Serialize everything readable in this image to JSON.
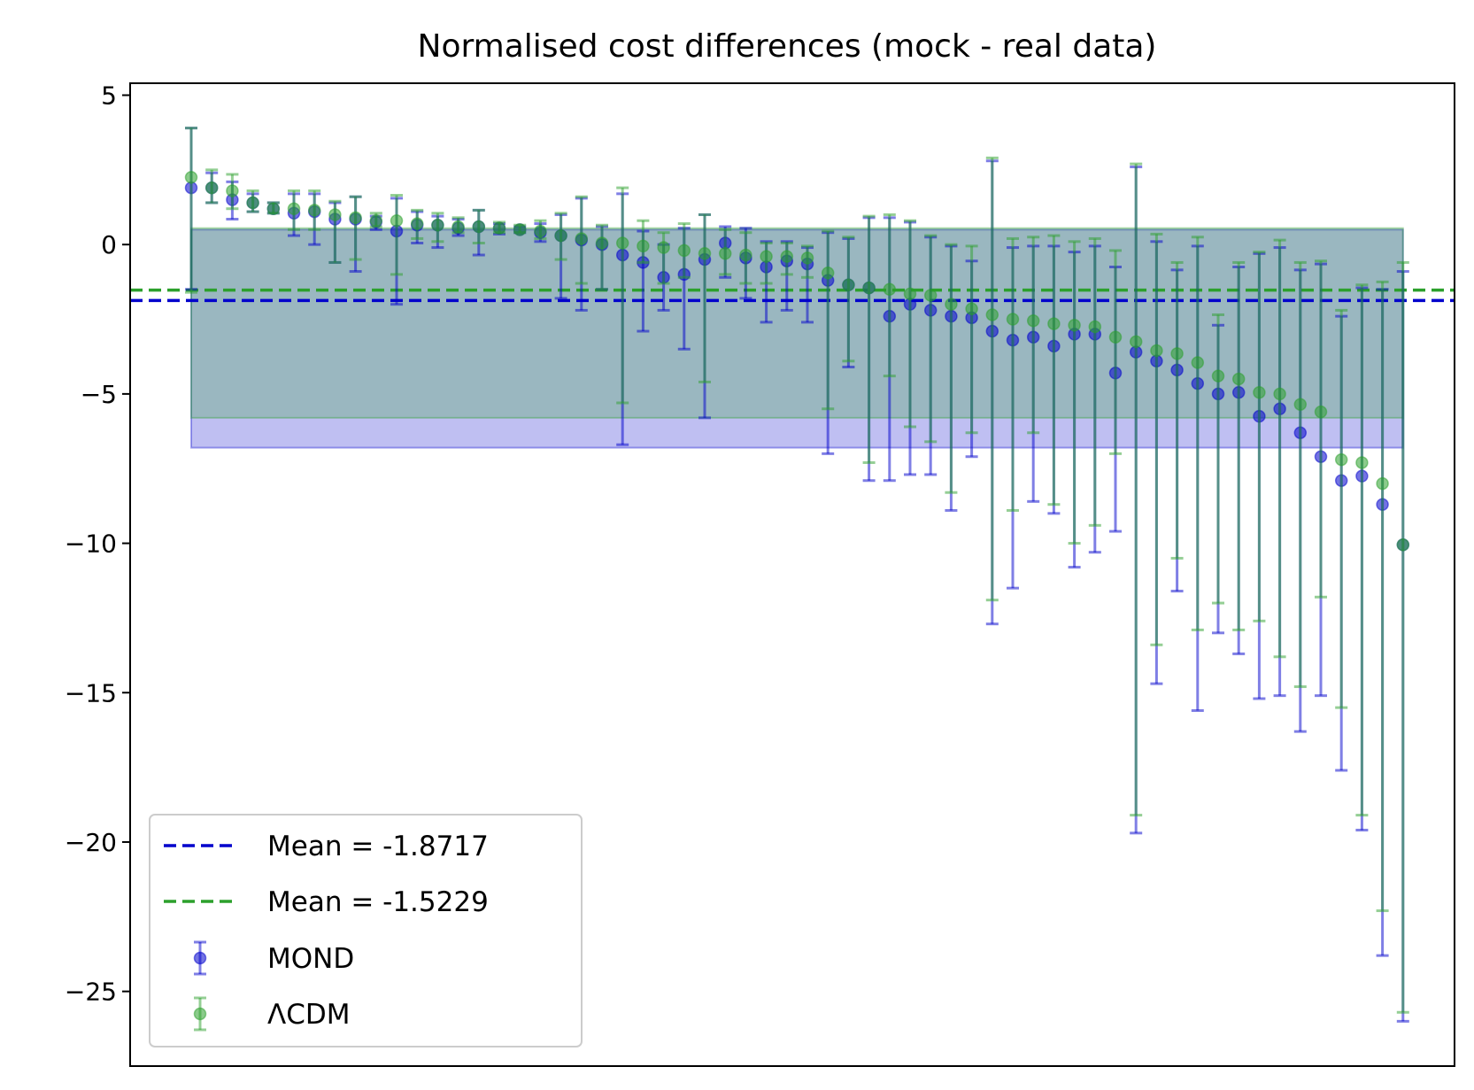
{
  "chart_data": {
    "type": "scatter",
    "title": "Normalised cost differences (mock - real data)",
    "xlabel": "",
    "ylabel": "",
    "ylim": [
      -27.5,
      5.4
    ],
    "yticks": [
      5,
      0,
      -5,
      -10,
      -15,
      -20,
      -25
    ],
    "yticklabels": [
      "5",
      "0",
      "−5",
      "−10",
      "−15",
      "−20",
      "−25"
    ],
    "xticks": [],
    "grid": false,
    "legend_position": "lower-left",
    "legend": [
      {
        "label": "Mean = -1.8717",
        "kind": "line",
        "color": "#0000cc"
      },
      {
        "label": "Mean = -1.5229",
        "kind": "line",
        "color": "#2ca02c"
      },
      {
        "label": "MOND",
        "kind": "errorbar",
        "color": "#0000cc"
      },
      {
        "label": "ΛCDM",
        "kind": "errorbar",
        "color": "#2ca02c"
      }
    ],
    "mean_lines": [
      {
        "name": "MOND mean",
        "value": -1.8717,
        "color": "#0000cc"
      },
      {
        "name": "ΛCDM mean",
        "value": -1.5229,
        "color": "#2ca02c"
      }
    ],
    "bands": [
      {
        "name": "MOND band",
        "y1": 0.5,
        "y2": -6.8,
        "color": "#0000cc"
      },
      {
        "name": "ΛCDM band",
        "y1": 0.55,
        "y2": -5.8,
        "color": "#2ca02c"
      }
    ],
    "series": [
      {
        "name": "MOND",
        "color": "#0000cc",
        "values": [
          1.9,
          1.9,
          1.5,
          1.4,
          1.2,
          1.05,
          1.1,
          0.85,
          0.85,
          0.75,
          0.45,
          0.65,
          0.65,
          0.55,
          0.6,
          0.55,
          0.5,
          0.4,
          0.3,
          0.15,
          0.0,
          -0.35,
          -0.6,
          -1.1,
          -1.0,
          -0.5,
          0.05,
          -0.45,
          -0.75,
          -0.55,
          -0.65,
          -1.2,
          -1.35,
          -1.45,
          -2.4,
          -2.0,
          -2.2,
          -2.4,
          -2.45,
          -2.9,
          -3.2,
          -3.1,
          -3.4,
          -3.0,
          -3.0,
          -4.3,
          -3.6,
          -3.9,
          -4.2,
          -4.65,
          -5.0,
          -4.95,
          -5.75,
          -5.5,
          -6.3,
          -7.1,
          -7.9,
          -7.75,
          -8.7,
          -10.05
        ],
        "err_low": [
          -1.5,
          1.4,
          0.85,
          1.1,
          1.05,
          0.3,
          0.0,
          -0.6,
          -0.9,
          0.5,
          -2.0,
          0.05,
          -0.1,
          0.3,
          -0.35,
          0.35,
          0.4,
          0.1,
          -1.8,
          -2.2,
          -1.5,
          -6.7,
          -2.9,
          -2.2,
          -3.5,
          -5.8,
          -1.1,
          -1.8,
          -2.6,
          -2.2,
          -2.6,
          -7.0,
          -4.1,
          -7.9,
          -7.9,
          -7.7,
          -7.7,
          -8.9,
          -7.1,
          -12.7,
          -11.5,
          -8.6,
          -9.0,
          -10.8,
          -10.3,
          -9.6,
          -19.7,
          -14.7,
          -11.6,
          -15.6,
          -13.0,
          -13.7,
          -15.2,
          -15.1,
          -16.3,
          -15.1,
          -17.6,
          -19.6,
          -23.8,
          -26.0
        ],
        "err_high": [
          3.9,
          2.4,
          2.1,
          1.7,
          1.4,
          1.7,
          1.7,
          1.4,
          1.6,
          0.95,
          1.55,
          1.1,
          0.95,
          0.85,
          1.15,
          0.7,
          0.6,
          0.7,
          1.0,
          1.55,
          0.6,
          1.7,
          0.45,
          0.0,
          0.55,
          1.0,
          0.6,
          0.55,
          0.1,
          0.1,
          -0.1,
          0.4,
          0.2,
          0.9,
          0.9,
          0.75,
          0.25,
          -0.05,
          -0.55,
          2.8,
          -0.1,
          -0.05,
          -0.05,
          -0.25,
          -0.05,
          -0.75,
          2.6,
          0.1,
          -0.85,
          -0.05,
          -2.7,
          -0.75,
          -0.3,
          -0.1,
          -0.85,
          -0.65,
          -2.4,
          -1.45,
          -1.5,
          -0.9
        ]
      },
      {
        "name": "ΛCDM",
        "color": "#2ca02c",
        "values": [
          2.25,
          1.9,
          1.8,
          1.4,
          1.2,
          1.2,
          1.15,
          1.0,
          0.9,
          0.8,
          0.8,
          0.7,
          0.65,
          0.6,
          0.6,
          0.55,
          0.5,
          0.45,
          0.3,
          0.2,
          0.05,
          0.05,
          -0.05,
          -0.1,
          -0.2,
          -0.3,
          -0.3,
          -0.35,
          -0.4,
          -0.4,
          -0.45,
          -0.95,
          -1.35,
          -1.45,
          -1.5,
          -1.65,
          -1.7,
          -2.0,
          -2.15,
          -2.35,
          -2.5,
          -2.55,
          -2.65,
          -2.7,
          -2.75,
          -3.1,
          -3.25,
          -3.55,
          -3.65,
          -3.95,
          -4.4,
          -4.5,
          -4.95,
          -5.0,
          -5.35,
          -5.6,
          -7.2,
          -7.3,
          -8.0,
          -10.05
        ],
        "err_low": [
          -1.6,
          1.4,
          1.2,
          1.1,
          1.05,
          0.5,
          0.5,
          -0.6,
          -0.5,
          0.6,
          -1.0,
          0.2,
          0.1,
          0.4,
          0.05,
          0.4,
          0.4,
          0.2,
          -0.5,
          -1.3,
          -1.5,
          -5.3,
          -0.6,
          -1.3,
          -1.1,
          -4.6,
          -1.0,
          -1.3,
          -1.3,
          -1.0,
          -1.1,
          -5.5,
          -3.9,
          -7.3,
          -4.4,
          -6.1,
          -6.6,
          -8.3,
          -6.3,
          -11.9,
          -8.9,
          -6.3,
          -8.7,
          -10.0,
          -9.4,
          -7.0,
          -19.1,
          -13.4,
          -10.5,
          -12.9,
          -12.0,
          -12.9,
          -12.6,
          -13.8,
          -14.8,
          -11.8,
          -15.5,
          -19.1,
          -22.3,
          -25.7
        ],
        "err_high": [
          3.9,
          2.5,
          2.35,
          1.8,
          1.4,
          1.8,
          1.8,
          1.45,
          1.6,
          1.05,
          1.65,
          1.15,
          1.05,
          0.9,
          1.15,
          0.75,
          0.65,
          0.8,
          1.05,
          1.6,
          0.65,
          1.9,
          0.8,
          0.4,
          0.7,
          1.0,
          0.5,
          0.4,
          0.05,
          0.05,
          -0.05,
          0.45,
          0.25,
          0.95,
          1.0,
          0.8,
          0.3,
          0.0,
          -0.05,
          2.9,
          0.2,
          0.25,
          0.3,
          0.1,
          0.2,
          -0.2,
          2.7,
          0.35,
          -0.6,
          0.25,
          -2.35,
          -0.6,
          -0.25,
          0.15,
          -0.6,
          -0.55,
          -2.2,
          -1.35,
          -1.25,
          -0.6
        ]
      }
    ]
  }
}
